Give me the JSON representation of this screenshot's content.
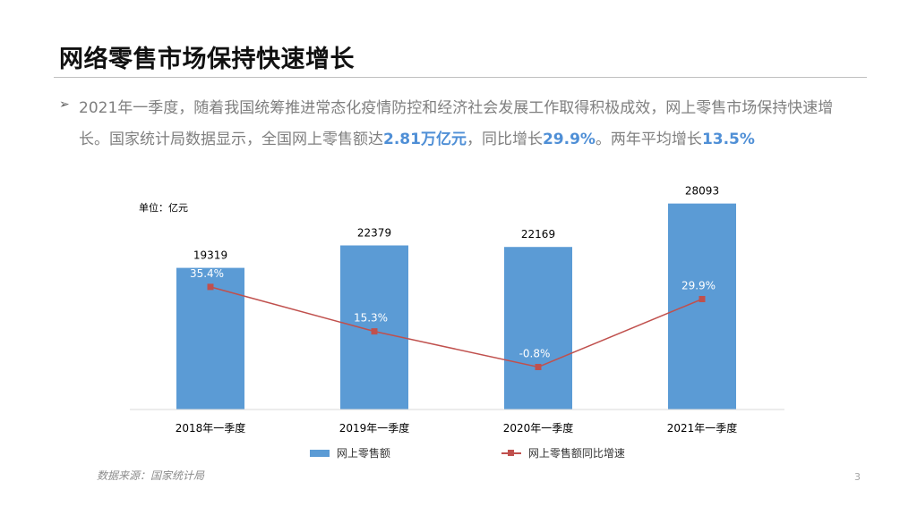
{
  "slide": {
    "title": "网络零售市场保持快速增长",
    "bullet_symbol": "➢",
    "bullet_parts": [
      {
        "text": "2021年一季度，随着我国统筹推进常态化疫情防控和经济社会发展工作取得积极成效，网上零售市场保持快速增长。国家统计局数据显示，全国网上零售额达",
        "highlight": false
      },
      {
        "text": "2.81万亿元",
        "highlight": true
      },
      {
        "text": "，同比增长",
        "highlight": false
      },
      {
        "text": "29.9%",
        "highlight": true
      },
      {
        "text": "。两年平均增长",
        "highlight": false
      },
      {
        "text": "13.5%",
        "highlight": true
      }
    ],
    "source": "数据来源：国家统计局",
    "page_number": "3"
  },
  "colors": {
    "bar": "#5b9bd5",
    "line": "#c0504d",
    "highlight": "#4f8fd6"
  },
  "chart_data": {
    "type": "bar",
    "unit_label": "单位：亿元",
    "categories": [
      "2018年一季度",
      "2019年一季度",
      "2020年一季度",
      "2021年一季度"
    ],
    "series": [
      {
        "name": "网上零售额",
        "type": "bar",
        "axis": "left",
        "values": [
          19319,
          22379,
          22169,
          28093
        ],
        "labels": [
          "19319",
          "22379",
          "22169",
          "28093"
        ]
      },
      {
        "name": "网上零售额同比增速",
        "type": "line",
        "axis": "right",
        "values": [
          35.4,
          15.3,
          -0.8,
          29.9
        ],
        "labels": [
          "35.4%",
          "15.3%",
          "-0.8%",
          "29.9%"
        ]
      }
    ],
    "ylim_left": [
      0,
      30000
    ],
    "ylim_right": [
      -20,
      60
    ],
    "grid": false,
    "legend_position": "bottom"
  }
}
